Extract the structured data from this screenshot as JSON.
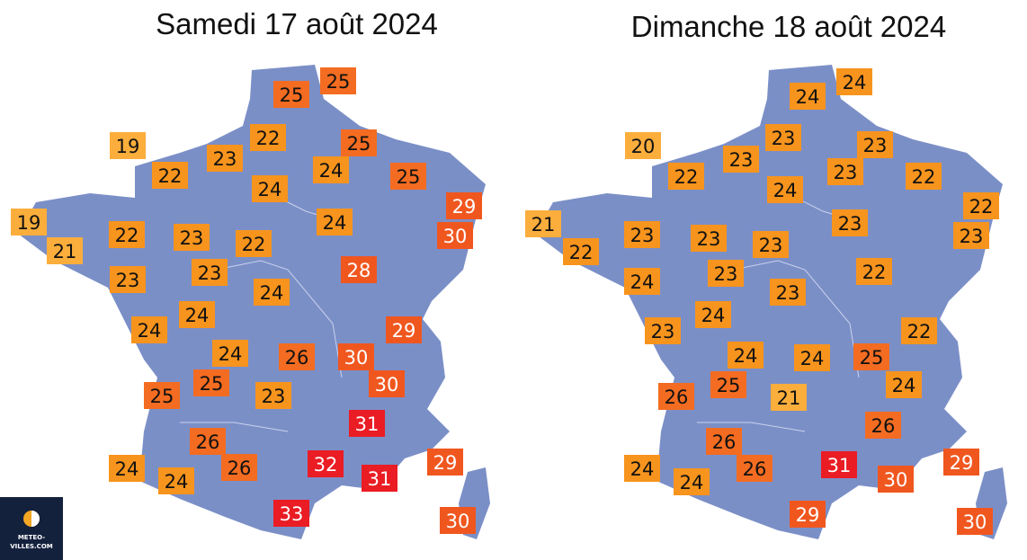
{
  "maps": [
    {
      "title": "Samedi 17 août 2024",
      "temperatures": [
        {
          "value": 25,
          "color": "#f36c21",
          "text_color": "#111111"
        },
        {
          "value": 25,
          "color": "#f36c21",
          "text_color": "#111111"
        },
        {
          "value": 22,
          "color": "#f7941d",
          "text_color": "#111111"
        },
        {
          "value": 19,
          "color": "#fbae3c",
          "text_color": "#111111"
        },
        {
          "value": 23,
          "color": "#f7941d",
          "text_color": "#111111"
        },
        {
          "value": 25,
          "color": "#f36c21",
          "text_color": "#111111"
        },
        {
          "value": 24,
          "color": "#f7941d",
          "text_color": "#111111"
        },
        {
          "value": 22,
          "color": "#f7941d",
          "text_color": "#111111"
        },
        {
          "value": 24,
          "color": "#f7941d",
          "text_color": "#111111"
        },
        {
          "value": 25,
          "color": "#f36c21",
          "text_color": "#111111"
        },
        {
          "value": 29,
          "color": "#f0571f",
          "text_color": "#ffffff"
        },
        {
          "value": 19,
          "color": "#fbae3c",
          "text_color": "#111111"
        },
        {
          "value": 24,
          "color": "#f7941d",
          "text_color": "#111111"
        },
        {
          "value": 22,
          "color": "#f7941d",
          "text_color": "#111111"
        },
        {
          "value": 23,
          "color": "#f7941d",
          "text_color": "#111111"
        },
        {
          "value": 30,
          "color": "#f0571f",
          "text_color": "#ffffff"
        },
        {
          "value": 21,
          "color": "#fbae3c",
          "text_color": "#111111"
        },
        {
          "value": 22,
          "color": "#f7941d",
          "text_color": "#111111"
        },
        {
          "value": 28,
          "color": "#f0571f",
          "text_color": "#ffffff"
        },
        {
          "value": 23,
          "color": "#f7941d",
          "text_color": "#111111"
        },
        {
          "value": 23,
          "color": "#f7941d",
          "text_color": "#111111"
        },
        {
          "value": 24,
          "color": "#f7941d",
          "text_color": "#111111"
        },
        {
          "value": 24,
          "color": "#f7941d",
          "text_color": "#111111"
        },
        {
          "value": 24,
          "color": "#f7941d",
          "text_color": "#111111"
        },
        {
          "value": 29,
          "color": "#f0571f",
          "text_color": "#ffffff"
        },
        {
          "value": 24,
          "color": "#f7941d",
          "text_color": "#111111"
        },
        {
          "value": 26,
          "color": "#f36c21",
          "text_color": "#111111"
        },
        {
          "value": 30,
          "color": "#f0571f",
          "text_color": "#ffffff"
        },
        {
          "value": 25,
          "color": "#f36c21",
          "text_color": "#111111"
        },
        {
          "value": 30,
          "color": "#f0571f",
          "text_color": "#ffffff"
        },
        {
          "value": 25,
          "color": "#f36c21",
          "text_color": "#111111"
        },
        {
          "value": 23,
          "color": "#f7941d",
          "text_color": "#111111"
        },
        {
          "value": 31,
          "color": "#ea1c24",
          "text_color": "#ffffff"
        },
        {
          "value": 26,
          "color": "#f36c21",
          "text_color": "#111111"
        },
        {
          "value": 24,
          "color": "#f7941d",
          "text_color": "#111111"
        },
        {
          "value": 26,
          "color": "#f36c21",
          "text_color": "#111111"
        },
        {
          "value": 32,
          "color": "#ea1c24",
          "text_color": "#ffffff"
        },
        {
          "value": 29,
          "color": "#f0571f",
          "text_color": "#ffffff"
        },
        {
          "value": 31,
          "color": "#ea1c24",
          "text_color": "#ffffff"
        },
        {
          "value": 24,
          "color": "#f7941d",
          "text_color": "#111111"
        },
        {
          "value": 33,
          "color": "#ea1c24",
          "text_color": "#ffffff"
        },
        {
          "value": 30,
          "color": "#f0571f",
          "text_color": "#ffffff"
        }
      ]
    },
    {
      "title": "Dimanche 18 août 2024",
      "temperatures": [
        {
          "value": 24,
          "color": "#f7941d",
          "text_color": "#111111"
        },
        {
          "value": 24,
          "color": "#f7941d",
          "text_color": "#111111"
        },
        {
          "value": 20,
          "color": "#fbae3c",
          "text_color": "#111111"
        },
        {
          "value": 23,
          "color": "#f7941d",
          "text_color": "#111111"
        },
        {
          "value": 23,
          "color": "#f7941d",
          "text_color": "#111111"
        },
        {
          "value": 23,
          "color": "#f7941d",
          "text_color": "#111111"
        },
        {
          "value": 22,
          "color": "#f7941d",
          "text_color": "#111111"
        },
        {
          "value": 23,
          "color": "#f7941d",
          "text_color": "#111111"
        },
        {
          "value": 22,
          "color": "#f7941d",
          "text_color": "#111111"
        },
        {
          "value": 24,
          "color": "#f7941d",
          "text_color": "#111111"
        },
        {
          "value": 22,
          "color": "#f7941d",
          "text_color": "#111111"
        },
        {
          "value": 21,
          "color": "#fbae3c",
          "text_color": "#111111"
        },
        {
          "value": 23,
          "color": "#f7941d",
          "text_color": "#111111"
        },
        {
          "value": 23,
          "color": "#f7941d",
          "text_color": "#111111"
        },
        {
          "value": 23,
          "color": "#f7941d",
          "text_color": "#111111"
        },
        {
          "value": 23,
          "color": "#f7941d",
          "text_color": "#111111"
        },
        {
          "value": 23,
          "color": "#f7941d",
          "text_color": "#111111"
        },
        {
          "value": 22,
          "color": "#f7941d",
          "text_color": "#111111"
        },
        {
          "value": 22,
          "color": "#f7941d",
          "text_color": "#111111"
        },
        {
          "value": 23,
          "color": "#f7941d",
          "text_color": "#111111"
        },
        {
          "value": 24,
          "color": "#f7941d",
          "text_color": "#111111"
        },
        {
          "value": 23,
          "color": "#f7941d",
          "text_color": "#111111"
        },
        {
          "value": 24,
          "color": "#f7941d",
          "text_color": "#111111"
        },
        {
          "value": 22,
          "color": "#f7941d",
          "text_color": "#111111"
        },
        {
          "value": 23,
          "color": "#f7941d",
          "text_color": "#111111"
        },
        {
          "value": 24,
          "color": "#f7941d",
          "text_color": "#111111"
        },
        {
          "value": 24,
          "color": "#f7941d",
          "text_color": "#111111"
        },
        {
          "value": 25,
          "color": "#f36c21",
          "text_color": "#111111"
        },
        {
          "value": 25,
          "color": "#f36c21",
          "text_color": "#111111"
        },
        {
          "value": 24,
          "color": "#f7941d",
          "text_color": "#111111"
        },
        {
          "value": 26,
          "color": "#f36c21",
          "text_color": "#111111"
        },
        {
          "value": 21,
          "color": "#fbae3c",
          "text_color": "#111111"
        },
        {
          "value": 26,
          "color": "#f36c21",
          "text_color": "#111111"
        },
        {
          "value": 26,
          "color": "#f36c21",
          "text_color": "#111111"
        },
        {
          "value": 24,
          "color": "#f7941d",
          "text_color": "#111111"
        },
        {
          "value": 26,
          "color": "#f36c21",
          "text_color": "#111111"
        },
        {
          "value": 31,
          "color": "#ea1c24",
          "text_color": "#ffffff"
        },
        {
          "value": 29,
          "color": "#f0571f",
          "text_color": "#ffffff"
        },
        {
          "value": 30,
          "color": "#f0571f",
          "text_color": "#ffffff"
        },
        {
          "value": 24,
          "color": "#f7941d",
          "text_color": "#111111"
        },
        {
          "value": 29,
          "color": "#f0571f",
          "text_color": "#ffffff"
        },
        {
          "value": 30,
          "color": "#f0571f",
          "text_color": "#ffffff"
        }
      ]
    }
  ],
  "logo": {
    "line1": "METEO-",
    "line2": "VILLES.COM"
  }
}
